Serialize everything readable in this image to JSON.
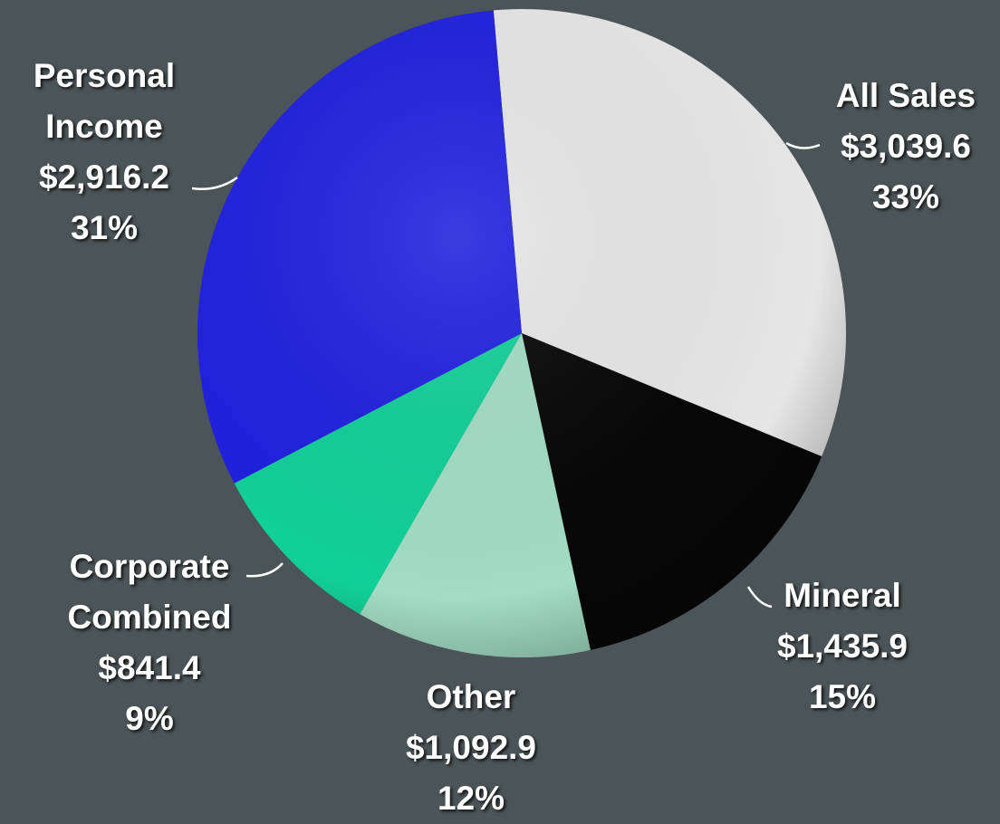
{
  "chart_data": {
    "type": "pie",
    "categories": [
      "All Sales",
      "Mineral",
      "Other",
      "Corporate Combined",
      "Personal Income"
    ],
    "values": [
      3039.6,
      1435.9,
      1092.9,
      841.4,
      2916.2
    ],
    "value_labels": [
      "$3,039.6",
      "$1,435.9",
      "$1,092.9",
      "$841.4",
      "$2,916.2"
    ],
    "percent_labels": [
      "33%",
      "15%",
      "12%",
      "9%",
      "31%"
    ],
    "colors": [
      "#e6e6e6",
      "#070707",
      "#a2dcc4",
      "#12cf98",
      "#2121de"
    ]
  }
}
